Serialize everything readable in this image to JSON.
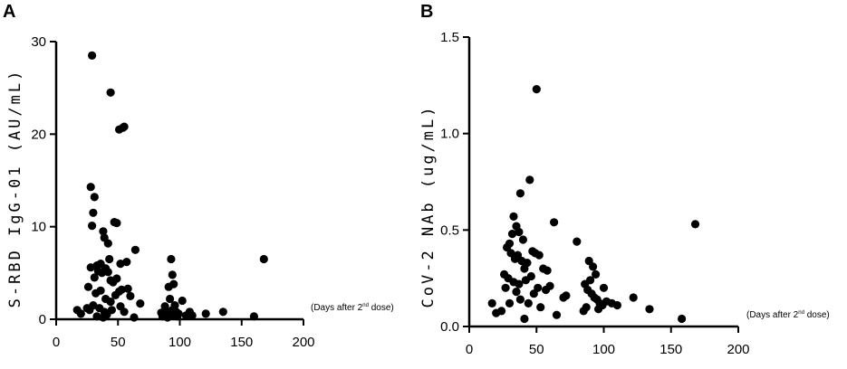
{
  "chart_data": [
    {
      "type": "scatter",
      "panel": "A",
      "ylabel": "S-RBD IgG-01 (AU/mL)",
      "x_note": {
        "prefix": "(Days after 2",
        "sup": "nd",
        "suffix": " dose)"
      },
      "xlim": [
        0,
        200
      ],
      "ylim": [
        0,
        30
      ],
      "xticks": [
        "0",
        "50",
        "100",
        "150",
        "200"
      ],
      "yticks": [
        "0",
        "10",
        "20",
        "30"
      ],
      "series": [
        {
          "x": [
            29,
            44,
            51,
            55,
            54,
            28,
            30,
            31,
            29,
            47,
            49,
            38,
            39,
            42,
            64,
            57,
            52,
            43,
            36,
            33,
            28,
            26,
            31,
            34,
            37,
            40,
            42,
            44,
            46,
            49,
            51,
            53,
            58,
            60,
            68,
            32,
            36,
            40,
            44,
            48,
            52,
            27,
            30,
            35,
            39,
            41,
            45,
            33,
            38,
            55,
            63,
            17,
            20,
            25,
            93,
            94,
            95,
            92,
            96,
            91,
            94,
            89,
            93,
            95,
            98,
            88,
            85,
            86,
            90,
            92,
            97,
            99,
            102,
            105,
            108,
            110,
            121,
            135,
            160,
            168
          ],
          "y": [
            28.5,
            24.5,
            20.5,
            20.8,
            20.7,
            14.3,
            11.5,
            13.2,
            10.1,
            10.5,
            10.4,
            9.5,
            8.8,
            8.2,
            7.5,
            6.2,
            6.0,
            6.5,
            6.0,
            5.8,
            5.6,
            3.5,
            4.5,
            5.2,
            5.0,
            5.5,
            5.1,
            4.2,
            4.0,
            4.4,
            3.0,
            3.2,
            3.3,
            2.5,
            1.7,
            2.8,
            3.1,
            2.2,
            1.9,
            2.6,
            1.4,
            1.0,
            1.5,
            1.2,
            0.8,
            0.5,
            1.0,
            0.3,
            0.2,
            0.8,
            0.2,
            1.0,
            0.6,
            1.2,
            6.5,
            4.8,
            3.8,
            2.2,
            1.5,
            3.5,
            1.0,
            0.8,
            0.4,
            0.6,
            0.3,
            1.4,
            0.7,
            0.3,
            0.2,
            0.5,
            0.8,
            0.6,
            2.0,
            0.4,
            0.8,
            0.4,
            0.6,
            0.8,
            0.3,
            6.5
          ]
        }
      ]
    },
    {
      "type": "scatter",
      "panel": "B",
      "ylabel": "CoV-2 NAb (ug/mL)",
      "x_note": {
        "prefix": "(Days after 2",
        "sup": "nd",
        "suffix": " dose)"
      },
      "xlim": [
        0,
        200
      ],
      "ylim": [
        0,
        1.5
      ],
      "xticks": [
        "0",
        "50",
        "100",
        "150",
        "200"
      ],
      "yticks": [
        "0.0",
        "0.5",
        "1.0",
        "1.5"
      ],
      "series": [
        {
          "x": [
            50,
            45,
            38,
            63,
            33,
            80,
            168,
            35,
            37,
            40,
            32,
            30,
            28,
            31,
            34,
            36,
            39,
            41,
            43,
            47,
            49,
            52,
            55,
            58,
            26,
            29,
            33,
            37,
            42,
            46,
            51,
            57,
            60,
            70,
            72,
            35,
            38,
            44,
            48,
            53,
            27,
            30,
            24,
            17,
            20,
            41,
            65,
            89,
            92,
            94,
            90,
            86,
            88,
            91,
            93,
            95,
            97,
            99,
            85,
            87,
            96,
            100,
            102,
            106,
            110,
            122,
            134,
            158
          ],
          "y": [
            1.23,
            0.76,
            0.69,
            0.54,
            0.57,
            0.44,
            0.53,
            0.52,
            0.49,
            0.45,
            0.48,
            0.43,
            0.41,
            0.38,
            0.35,
            0.37,
            0.34,
            0.3,
            0.33,
            0.39,
            0.38,
            0.37,
            0.3,
            0.29,
            0.27,
            0.25,
            0.23,
            0.22,
            0.24,
            0.26,
            0.2,
            0.19,
            0.21,
            0.15,
            0.16,
            0.18,
            0.14,
            0.12,
            0.17,
            0.1,
            0.2,
            0.12,
            0.08,
            0.12,
            0.07,
            0.04,
            0.06,
            0.34,
            0.31,
            0.27,
            0.24,
            0.22,
            0.19,
            0.17,
            0.15,
            0.14,
            0.12,
            0.11,
            0.08,
            0.1,
            0.09,
            0.2,
            0.13,
            0.12,
            0.11,
            0.15,
            0.09,
            0.04
          ]
        }
      ]
    }
  ]
}
